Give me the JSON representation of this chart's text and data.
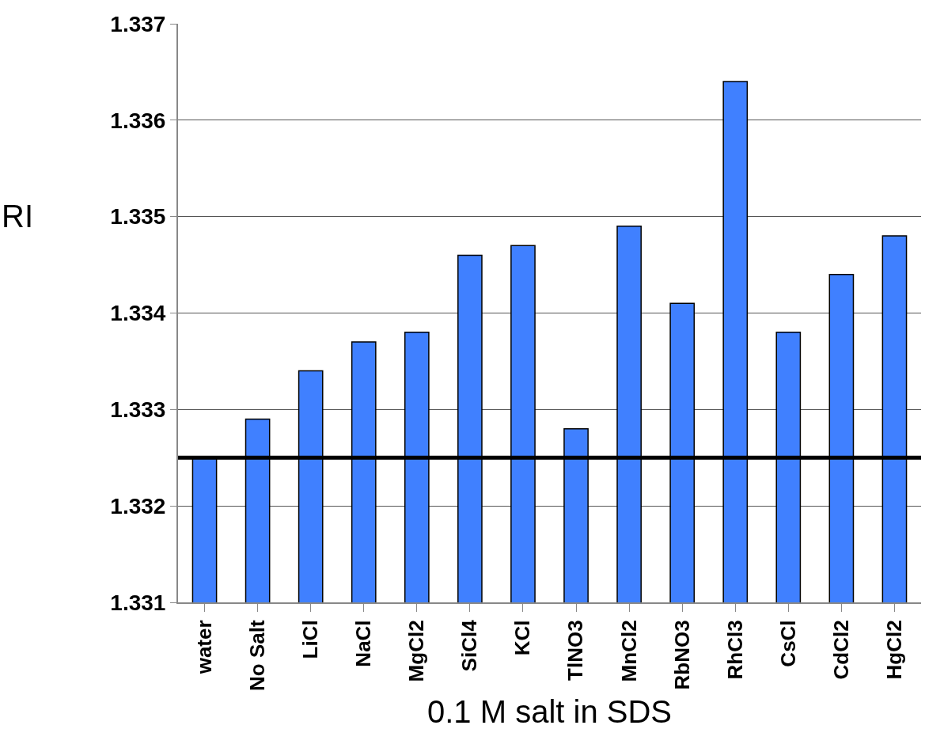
{
  "chart_data": {
    "type": "bar",
    "xlabel": "0.1 M salt in SDS",
    "ylabel": "RI",
    "categories": [
      "water",
      "No Salt",
      "LiCl",
      "NaCl",
      "MgCl2",
      "SiCl4",
      "KCl",
      "TlNO3",
      "MnCl2",
      "RbNO3",
      "RhCl3",
      "CsCl",
      "CdCl2",
      "HgCl2"
    ],
    "values": [
      1.3325,
      1.3329,
      1.3334,
      1.3337,
      1.3338,
      1.3346,
      1.3347,
      1.3328,
      1.3349,
      1.3341,
      1.3364,
      1.3338,
      1.3344,
      1.3348
    ],
    "color": "#4080ff",
    "ylim": [
      1.331,
      1.337
    ],
    "yticks": [
      1.331,
      1.332,
      1.333,
      1.334,
      1.335,
      1.336,
      1.337
    ],
    "grid": "y",
    "legend": false,
    "ref_lines": [
      {
        "axis": "y",
        "value": 1.3325,
        "color": "#000000"
      }
    ]
  }
}
